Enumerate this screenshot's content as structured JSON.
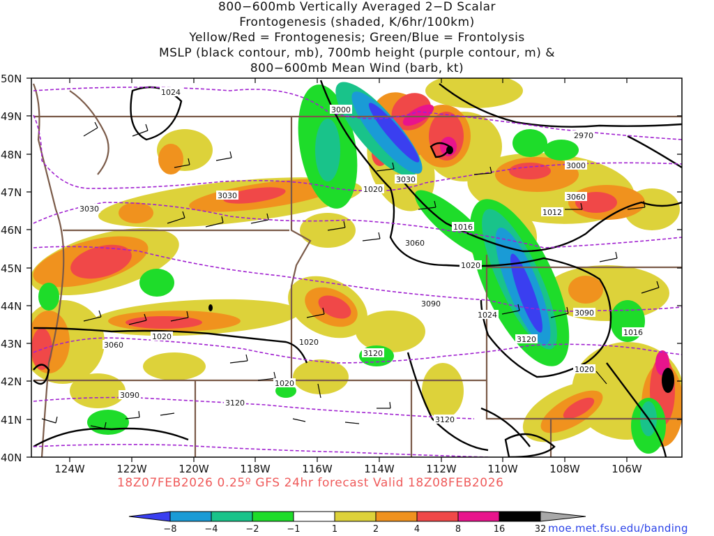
{
  "title_lines": [
    "800−600mb Vertically Averaged 2−D Scalar",
    "Frontogenesis (shaded, K/6hr/100km)",
    "Yellow/Red = Frontogenesis;  Green/Blue = Frontolysis",
    "MSLP (black contour, mb), 700mb height (purple contour, m) &",
    "800−600mb Mean Wind (barb, kt)"
  ],
  "valid_text": "18Z07FEB2026 0.25º GFS 24hr forecast Valid 18Z08FEB2026",
  "credit_url": "moe.met.fsu.edu/banding",
  "lat_labels": [
    "50N",
    "49N",
    "48N",
    "47N",
    "46N",
    "45N",
    "44N",
    "43N",
    "42N",
    "41N",
    "40N"
  ],
  "lon_labels": [
    "124W",
    "122W",
    "120W",
    "118W",
    "116W",
    "114W",
    "112W",
    "110W",
    "108W",
    "106W"
  ],
  "colorbar": {
    "labels": [
      "−8",
      "−4",
      "−2",
      "−1",
      "1",
      "2",
      "4",
      "8",
      "16",
      "32"
    ],
    "colors": [
      "#3a3ff0",
      "#1a9bd6",
      "#19c38a",
      "#1edc2a",
      "#ffffff",
      "#ddd23a",
      "#f0921e",
      "#f04848",
      "#e8148c",
      "#000000",
      "#a8a8a8"
    ]
  },
  "mslp_labels": [
    "1024",
    "1020",
    "1020",
    "1020",
    "1020",
    "1020",
    "1016",
    "1012",
    "1020",
    "1024",
    "1016",
    "1020"
  ],
  "height_labels": [
    "3000",
    "2970",
    "3000",
    "3030",
    "3030",
    "3030",
    "3060",
    "3060",
    "3090",
    "3090",
    "3060",
    "3120",
    "3120",
    "3090",
    "3120",
    "3120",
    "3120"
  ]
}
